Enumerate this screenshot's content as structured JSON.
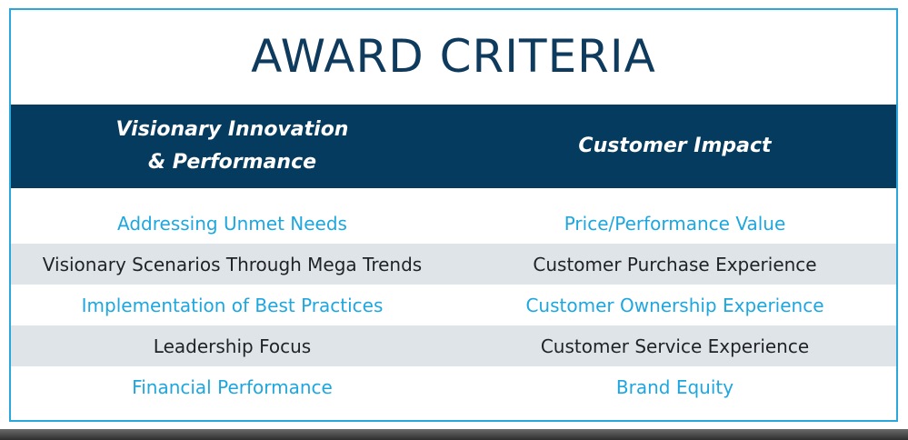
{
  "title": "AWARD CRITERIA",
  "table": {
    "headers": [
      "Visionary Innovation\n& Performance",
      "Customer Impact"
    ],
    "rows": [
      [
        "Addressing Unmet Needs",
        "Price/Performance Value"
      ],
      [
        "Visionary Scenarios Through Mega Trends",
        "Customer Purchase Experience"
      ],
      [
        "Implementation of Best Practices",
        "Customer Ownership Experience"
      ],
      [
        "Leadership Focus",
        "Customer Service Experience"
      ],
      [
        "Financial Performance",
        "Brand Equity"
      ]
    ]
  }
}
